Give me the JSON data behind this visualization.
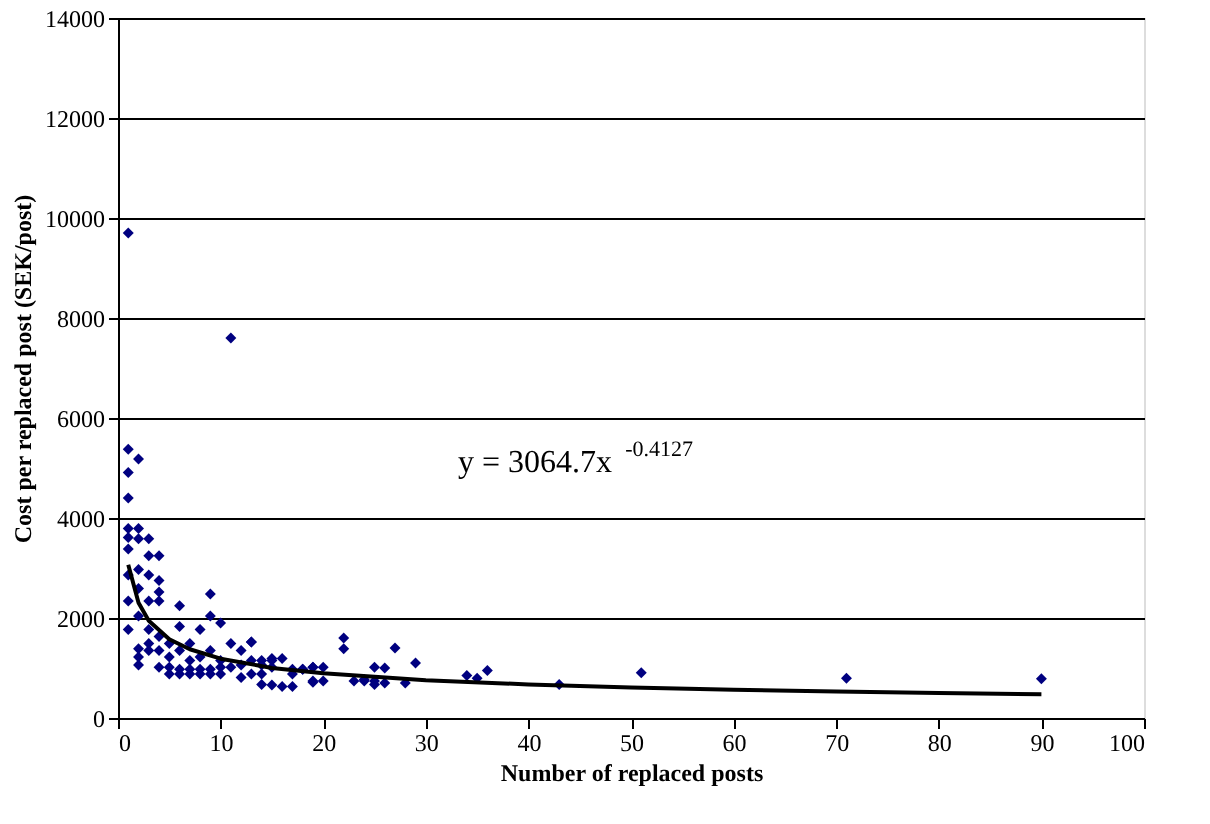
{
  "chart_data": {
    "type": "scatter",
    "xlabel": "Number of replaced posts",
    "ylabel": "Cost per replaced post (SEK/post)",
    "xlim": [
      0,
      100
    ],
    "ylim": [
      0,
      14000
    ],
    "xticks": [
      0,
      10,
      20,
      30,
      40,
      50,
      60,
      70,
      80,
      90,
      100
    ],
    "yticks": [
      0,
      2000,
      4000,
      6000,
      8000,
      10000,
      12000,
      14000
    ],
    "grid": "y",
    "annotations": [
      "y = 3064.7x$^{-0.4127}$"
    ],
    "series": [
      {
        "color": "#000080",
        "marker": "diamond",
        "x": [
          1,
          11,
          1,
          2,
          1,
          1,
          1,
          2,
          1,
          3,
          2,
          1,
          3,
          4,
          1,
          2,
          3,
          4,
          2,
          4,
          3,
          1,
          4,
          9,
          6,
          2,
          9,
          10,
          1,
          3,
          4,
          6,
          8,
          22,
          22,
          2,
          3,
          5,
          7,
          11,
          13,
          2,
          4,
          6,
          9,
          12,
          3,
          5,
          7,
          8,
          10,
          2,
          4,
          5,
          6,
          7,
          8,
          9,
          10,
          11,
          12,
          13,
          14,
          15,
          16,
          15,
          5,
          6,
          7,
          8,
          9,
          10,
          12,
          13,
          14,
          15,
          17,
          17,
          18,
          19,
          19,
          20,
          20,
          23,
          24,
          25,
          25,
          13,
          14,
          15,
          14,
          16,
          17,
          18,
          19,
          19,
          24,
          25,
          26,
          26,
          27,
          28,
          29,
          34,
          35,
          36,
          43,
          51,
          71,
          90
        ],
        "values": [
          9700,
          7600,
          5375,
          5180,
          4910,
          4400,
          3790,
          3790,
          3610,
          3585,
          3585,
          3380,
          3245,
          3245,
          2860,
          2970,
          2860,
          2750,
          2590,
          2520,
          2340,
          2340,
          2340,
          2480,
          2245,
          2040,
          2040,
          1900,
          1770,
          1770,
          1630,
          1830,
          1770,
          1600,
          1385,
          1385,
          1490,
          1490,
          1490,
          1490,
          1520,
          1220,
          1350,
          1350,
          1350,
          1350,
          1350,
          1220,
          1150,
          1220,
          1150,
          1060,
          1015,
          1015,
          975,
          975,
          975,
          975,
          1015,
          1015,
          1060,
          1150,
          1060,
          1150,
          1190,
          1015,
          880,
          880,
          880,
          880,
          880,
          880,
          810,
          880,
          880,
          660,
          880,
          630,
          975,
          1015,
          740,
          1015,
          740,
          740,
          740,
          1015,
          740,
          1520,
          1150,
          1190,
          670,
          630,
          975,
          975,
          1015,
          715,
          770,
          670,
          1000,
          700,
          1400,
          700,
          1100,
          850,
          795,
          950,
          670,
          905,
          795,
          785
        ]
      },
      {
        "type": "line",
        "color": "#000000",
        "x": [
          1,
          2,
          3,
          5,
          7,
          10,
          15,
          20,
          30,
          40,
          50,
          60,
          70,
          80,
          90
        ],
        "values": [
          3065,
          2306,
          1946,
          1575,
          1375,
          1186,
          1001,
          893,
          753,
          672,
          612,
          567,
          530,
          500,
          475
        ]
      }
    ]
  }
}
